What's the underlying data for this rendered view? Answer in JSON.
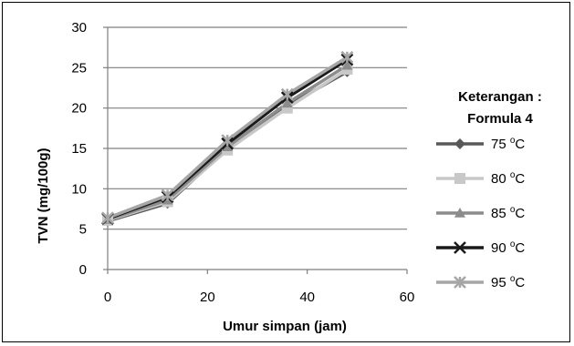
{
  "chart_data": {
    "type": "line",
    "title": "",
    "xlabel": "Umur simpan (jam)",
    "ylabel": "TVN (mg/100g)",
    "xlim": [
      0,
      60
    ],
    "ylim": [
      0,
      30
    ],
    "x_ticks": [
      0,
      20,
      40,
      60
    ],
    "y_ticks": [
      0,
      5,
      10,
      15,
      20,
      25,
      30
    ],
    "grid": "horizontal",
    "legend_title_line1": "Keterangan :",
    "legend_title_line2": "Formula 4",
    "legend_placement": "right",
    "x": [
      0,
      12,
      24,
      36,
      48
    ],
    "series": [
      {
        "name": "75 °C",
        "name_num": "75 ",
        "name_sup": "o",
        "name_unit": "C",
        "values": [
          6.0,
          8.2,
          15.0,
          20.3,
          24.5
        ],
        "color": "#595959",
        "marker": "diamond"
      },
      {
        "name": "80 °C",
        "name_num": "80 ",
        "name_sup": "o",
        "name_unit": "C",
        "values": [
          6.1,
          8.4,
          14.8,
          20.0,
          24.8
        ],
        "color": "#c8c8c8",
        "marker": "square"
      },
      {
        "name": "85 °C",
        "name_num": "85 ",
        "name_sup": "o",
        "name_unit": "C",
        "values": [
          6.2,
          8.6,
          15.2,
          20.6,
          25.3
        ],
        "color": "#8c8c8c",
        "marker": "triangle"
      },
      {
        "name": "90 °C",
        "name_num": "90 ",
        "name_sup": "o",
        "name_unit": "C",
        "values": [
          6.3,
          9.0,
          15.6,
          21.3,
          26.0
        ],
        "color": "#1a1a1a",
        "marker": "x"
      },
      {
        "name": "95 °C",
        "name_num": "95 ",
        "name_sup": "o",
        "name_unit": "C",
        "values": [
          6.4,
          9.2,
          16.0,
          21.7,
          26.3
        ],
        "color": "#a6a6a6",
        "marker": "star"
      }
    ]
  }
}
